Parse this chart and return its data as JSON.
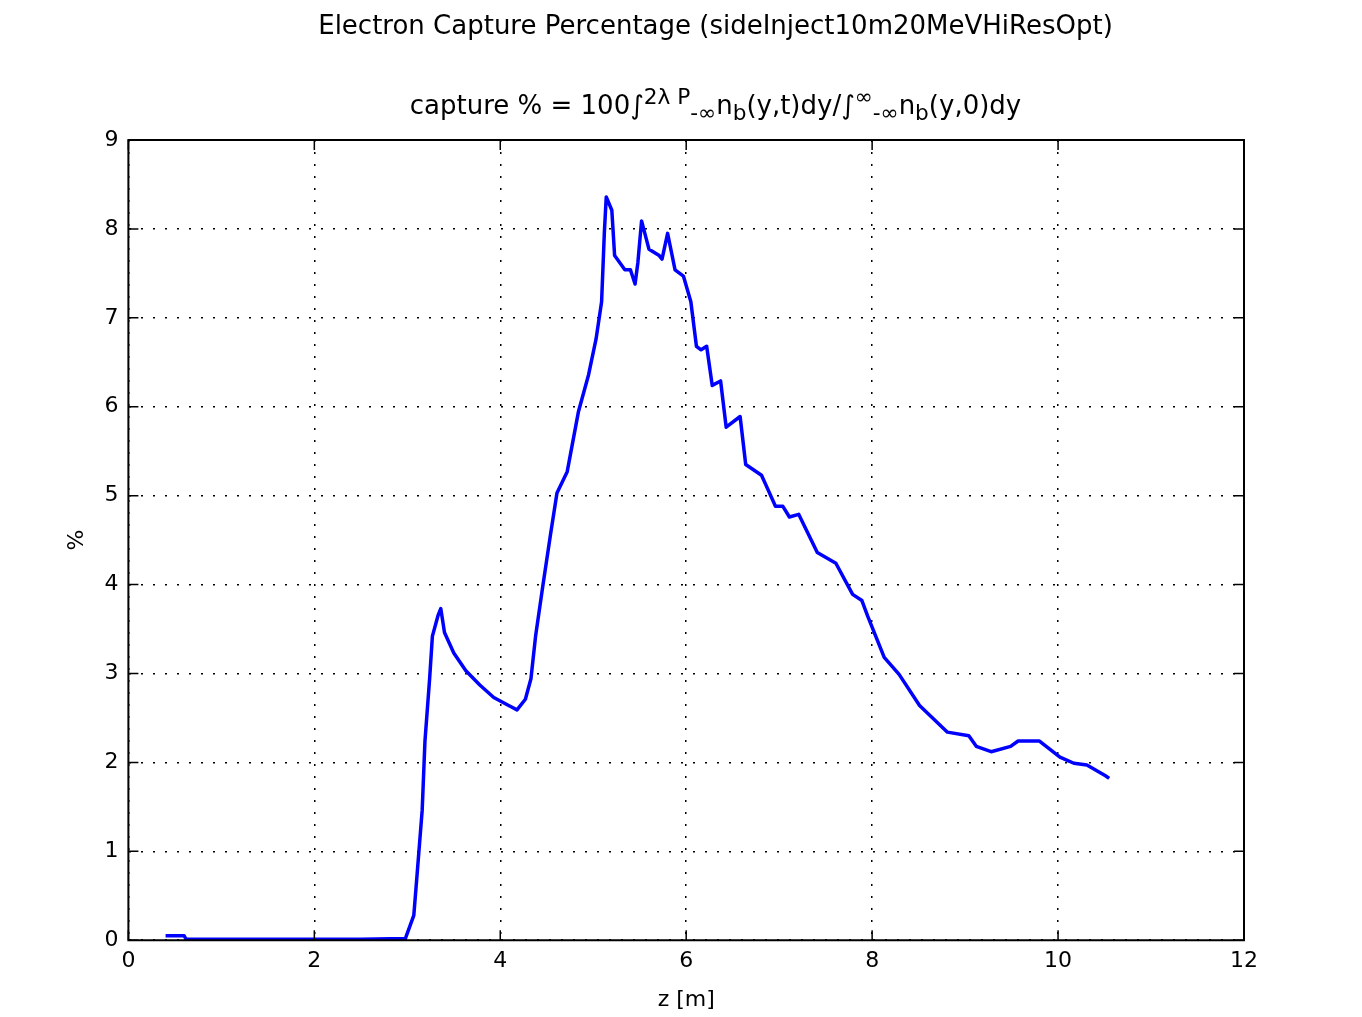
{
  "chart_data": {
    "type": "line",
    "title": "Electron Capture Percentage (sideInject10m20MeVHiResOpt)",
    "subtitle": "capture % = 100∫$^{2λ P}$$_{-∞}$n$_{b}$(y,t)dy/∫$^{∞}$$_{-∞}$n$_{b}$(y,0)dy",
    "xlabel": "z [m]",
    "ylabel": "%",
    "x": [
      0.4,
      0.6,
      0.62,
      1.5,
      2.5,
      2.98,
      3.07,
      3.1,
      3.16,
      3.19,
      3.24,
      3.27,
      3.33,
      3.36,
      3.4,
      3.5,
      3.63,
      3.78,
      3.93,
      4.09,
      4.18,
      4.27,
      4.33,
      4.38,
      4.46,
      4.54,
      4.61,
      4.72,
      4.84,
      4.95,
      5.03,
      5.09,
      5.12,
      5.14,
      5.2,
      5.23,
      5.34,
      5.4,
      5.45,
      5.48,
      5.52,
      5.6,
      5.71,
      5.74,
      5.8,
      5.88,
      5.97,
      6.05,
      6.11,
      6.16,
      6.22,
      6.28,
      6.37,
      6.43,
      6.58,
      6.64,
      6.81,
      6.96,
      7.04,
      7.11,
      7.21,
      7.41,
      7.61,
      7.79,
      7.89,
      7.95,
      8.13,
      8.29,
      8.51,
      8.81,
      9.04,
      9.12,
      9.28,
      9.49,
      9.57,
      9.8,
      10.02,
      10.17,
      10.31,
      10.51,
      10.55
    ],
    "series": [
      {
        "color": "#0000ff",
        "values": [
          0.05,
          0.05,
          0.01,
          0.01,
          0.01,
          0.02,
          0.28,
          0.67,
          1.46,
          2.24,
          2.94,
          3.42,
          3.65,
          3.73,
          3.46,
          3.23,
          3.03,
          2.87,
          2.73,
          2.64,
          2.59,
          2.71,
          2.94,
          3.42,
          4.0,
          4.56,
          5.03,
          5.27,
          5.94,
          6.36,
          6.76,
          7.18,
          7.97,
          8.36,
          8.21,
          7.7,
          7.54,
          7.54,
          7.38,
          7.62,
          8.09,
          7.77,
          7.7,
          7.66,
          7.95,
          7.54,
          7.47,
          7.18,
          6.68,
          6.64,
          6.68,
          6.24,
          6.29,
          5.77,
          5.89,
          5.35,
          5.23,
          4.88,
          4.88,
          4.76,
          4.79,
          4.36,
          4.24,
          3.89,
          3.82,
          3.65,
          3.18,
          2.99,
          2.64,
          2.34,
          2.3,
          2.18,
          2.12,
          2.18,
          2.24,
          2.24,
          2.06,
          1.99,
          1.97,
          1.85,
          1.82
        ]
      }
    ],
    "xlim": [
      0,
      12
    ],
    "xticks": [
      0,
      2,
      4,
      6,
      8,
      10,
      12
    ],
    "ylim": [
      0,
      9
    ],
    "yticks": [
      0,
      1,
      2,
      3,
      4,
      5,
      6,
      7,
      8,
      9
    ],
    "grid": true,
    "marker": "none",
    "line_style": "solid"
  }
}
